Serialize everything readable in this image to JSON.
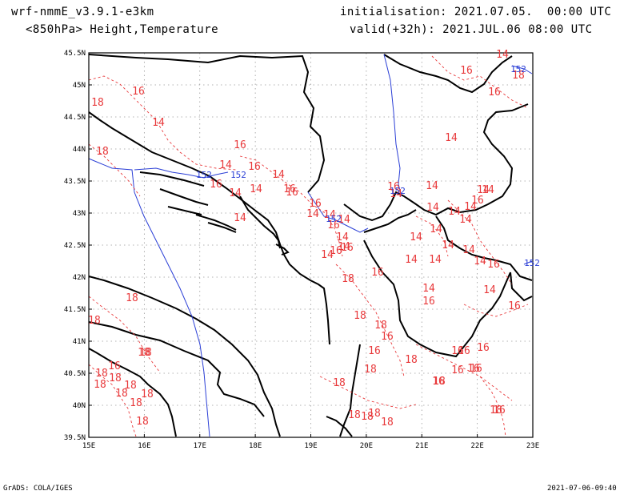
{
  "header": {
    "model": "wrf-nmmE_v3.9.1-e3km",
    "level_fields": "<850hPa> Height,Temperature",
    "init": "initialisation: 2021.07.05.  00:00 UTC",
    "valid": "valid(+32h): 2021.JUL.06 08:00 UTC"
  },
  "footer": {
    "left": "GrADS: COLA/IGES",
    "right": "2021-07-06-09:40"
  },
  "axes": {
    "lon_labels": [
      "15E",
      "16E",
      "17E",
      "18E",
      "19E",
      "20E",
      "21E",
      "22E",
      "23E"
    ],
    "lat_labels": [
      "45.5N",
      "45N",
      "44.5N",
      "44N",
      "43.5N",
      "43N",
      "42.5N",
      "42N",
      "41.5N",
      "41N",
      "40.5N",
      "40N",
      "39.5N"
    ]
  },
  "colors": {
    "temperature": "#e8393b",
    "height": "#2b3fd6",
    "coast": "#000000",
    "grid": "#9a9a9a"
  },
  "temperature_labels": [
    "14",
    "18",
    "16",
    "16",
    "16",
    "18",
    "14",
    "16",
    "16",
    "16",
    "14",
    "14",
    "18",
    "14",
    "14",
    "14",
    "16",
    "16",
    "16",
    "14",
    "14",
    "16",
    "16",
    "14",
    "14",
    "16",
    "14",
    "14",
    "14",
    "14",
    "14",
    "14",
    "14",
    "14",
    "14",
    "14",
    "14",
    "14",
    "14",
    "14",
    "14",
    "14",
    "16",
    "16",
    "14",
    "14",
    "14",
    "18",
    "16",
    "16",
    "18",
    "18",
    "16",
    "14",
    "16",
    "16",
    "18",
    "18",
    "16",
    "18",
    "18",
    "16",
    "18",
    "16",
    "16",
    "16",
    "16",
    "16",
    "16",
    "18",
    "18",
    "18",
    "18",
    "18",
    "18",
    "18",
    "18",
    "18",
    "18",
    "18",
    "18",
    "18",
    "18",
    "18",
    "18",
    "16",
    "16"
  ],
  "height_labels": [
    "152",
    "152",
    "152",
    "152",
    "152",
    "152"
  ]
}
